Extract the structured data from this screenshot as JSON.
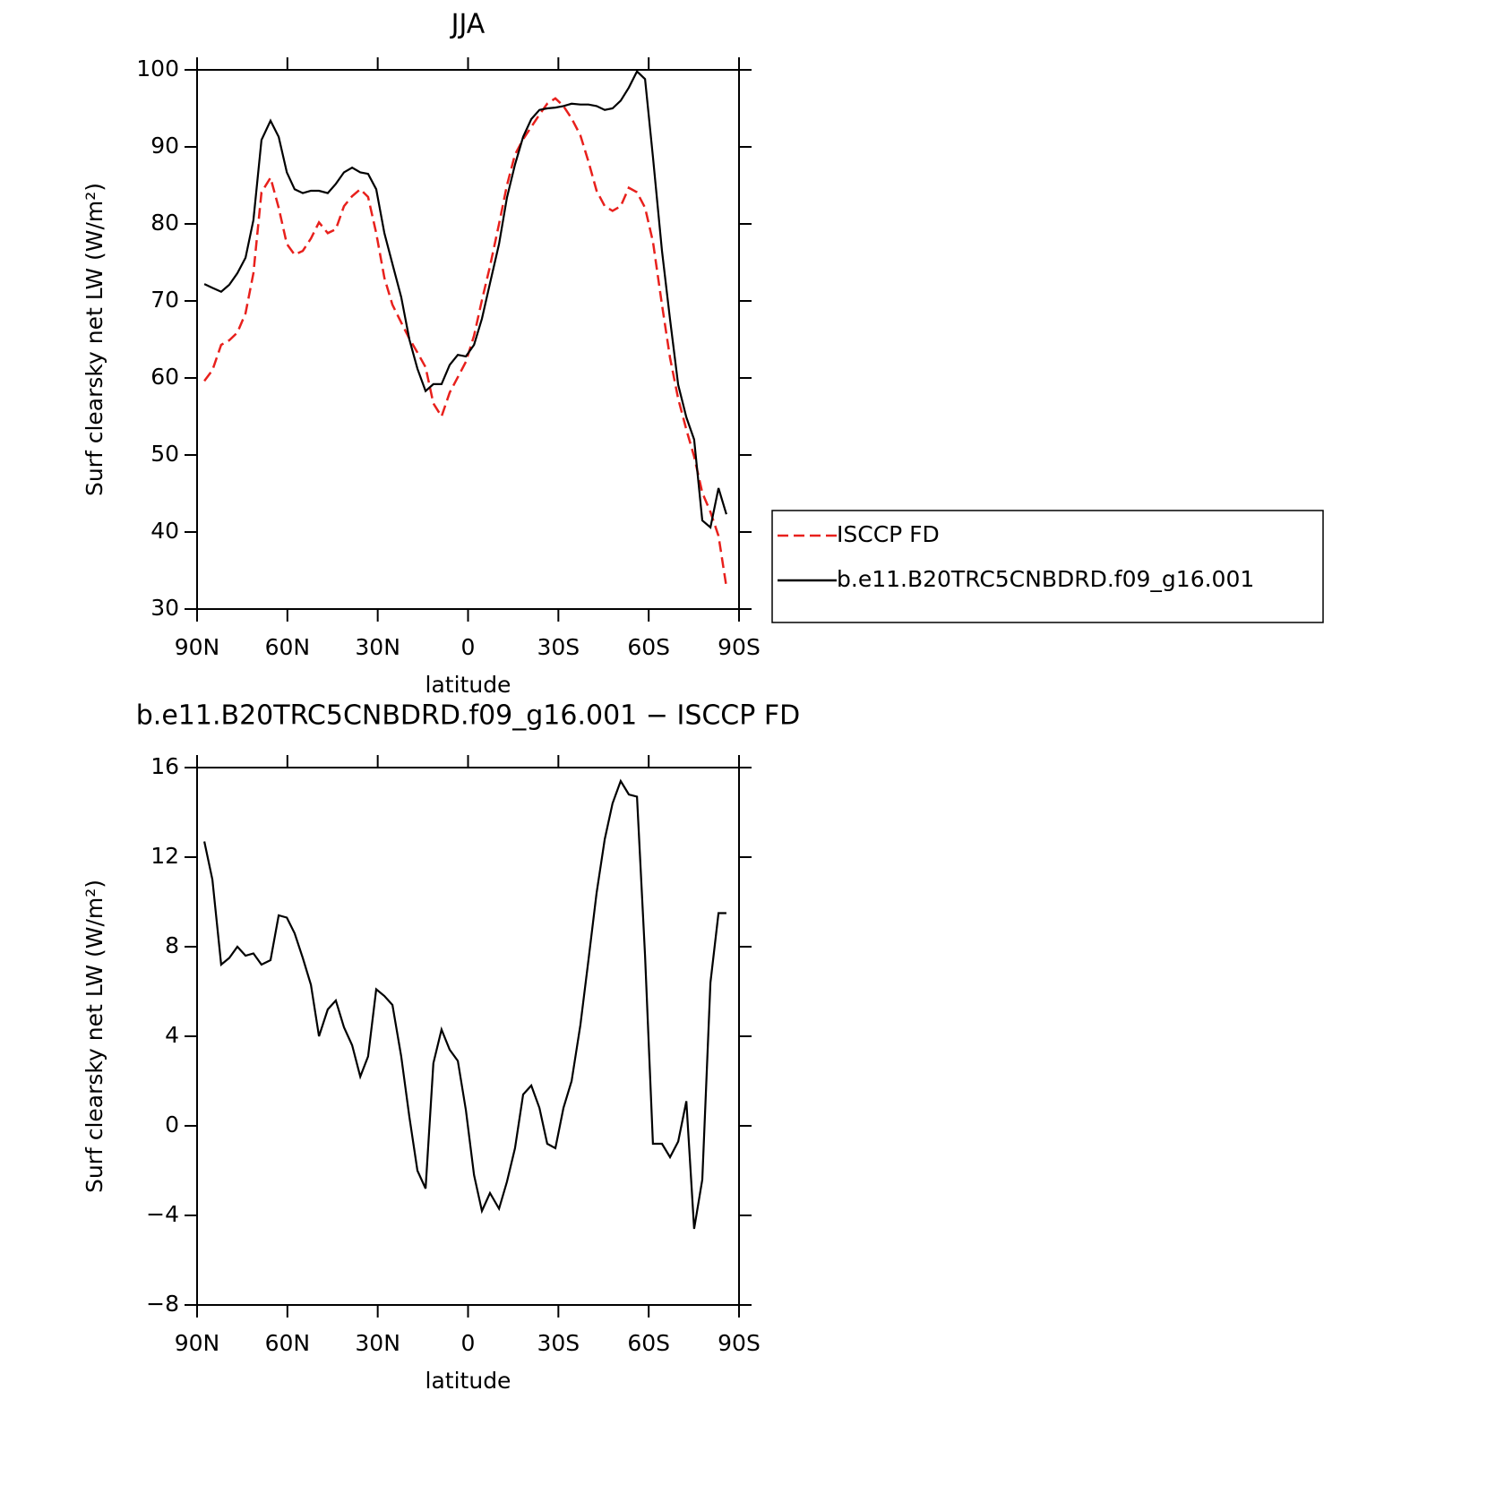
{
  "chart_data": [
    {
      "type": "line",
      "title": "JJA",
      "x_label": "latitude",
      "y_label": "Surf clearsky net LW (W/m²)",
      "x": [
        87.6,
        84.9,
        82.0,
        79.3,
        76.6,
        73.9,
        71.3,
        68.6,
        65.6,
        62.9,
        60.2,
        57.6,
        54.9,
        52.2,
        49.5,
        46.6,
        43.9,
        41.2,
        38.5,
        35.8,
        33.2,
        30.5,
        27.8,
        25.1,
        22.2,
        19.5,
        16.8,
        14.1,
        11.5,
        8.8,
        6.1,
        3.4,
        0.7,
        -2.0,
        -4.6,
        -7.3,
        -10.3,
        -12.9,
        -15.6,
        -18.3,
        -21.0,
        -23.7,
        -26.3,
        -29.0,
        -31.7,
        -34.4,
        -37.3,
        -40.0,
        -42.7,
        -45.4,
        -48.0,
        -50.7,
        -53.4,
        -56.1,
        -58.8,
        -61.4,
        -64.4,
        -67.1,
        -69.8,
        -72.5,
        -75.1,
        -77.8,
        -80.5,
        -83.2,
        -85.8
      ],
      "series": [
        {
          "name": "ISCCP FD",
          "color": "#e8201c",
          "line_style": "dashed",
          "values": [
            59.6,
            61,
            64.3,
            64.9,
            65.9,
            68.4,
            73.6,
            84.1,
            86,
            82.1,
            77.4,
            76,
            76.5,
            78.1,
            80.2,
            78.8,
            79.3,
            82.3,
            83.6,
            84.5,
            83.5,
            78.8,
            73,
            69.5,
            67.2,
            65.1,
            63.3,
            61.4,
            56.7,
            55,
            58.1,
            60.1,
            62.1,
            65.5,
            70.1,
            74.5,
            80,
            85,
            89,
            91,
            92.6,
            94.2,
            95.6,
            96.3,
            95.3,
            93.7,
            91.5,
            88.1,
            84.3,
            82.3,
            81.7,
            82.3,
            84.7,
            84.1,
            82.1,
            77.7,
            69.5,
            62.6,
            57.3,
            53.3,
            49.8,
            45.1,
            42.6,
            39.5,
            32.9
          ]
        },
        {
          "name": "b.e11.B20TRC5CNBDRD.f09_g16.001",
          "color": "#000000",
          "line_style": "solid",
          "values": [
            72.2,
            71.7,
            71.2,
            72.1,
            73.6,
            75.6,
            80.5,
            90.9,
            93.4,
            91.3,
            86.7,
            84.5,
            84,
            84.3,
            84.3,
            84,
            85.2,
            86.7,
            87.3,
            86.7,
            86.5,
            84.5,
            78.8,
            74.8,
            70.5,
            65,
            61.2,
            58.3,
            59.2,
            59.2,
            61.7,
            63,
            62.8,
            64.3,
            67.7,
            72.3,
            77.4,
            83.4,
            87.7,
            91.3,
            93.6,
            94.8,
            95,
            95.1,
            95.3,
            95.6,
            95.5,
            95.5,
            95.3,
            94.8,
            95,
            96,
            97.7,
            99.8,
            98.8,
            88.7,
            76.5,
            67.6,
            59.1,
            54.9,
            52,
            41.5,
            40.6,
            45.7,
            42.3
          ]
        }
      ],
      "xlim": [
        90,
        -90
      ],
      "xticks": [
        {
          "value": 90,
          "label": "90N"
        },
        {
          "value": 60,
          "label": "60N"
        },
        {
          "value": 30,
          "label": "30N"
        },
        0,
        {
          "value": -30,
          "label": "30S"
        },
        {
          "value": -60,
          "label": "60S"
        },
        {
          "value": -90,
          "label": "90S"
        }
      ],
      "ylim": [
        30,
        100
      ],
      "yticks": [
        30,
        40,
        50,
        60,
        70,
        80,
        90,
        100
      ],
      "legend": "right"
    },
    {
      "type": "line",
      "title": "b.e11.B20TRC5CNBDRD.f09_g16.001 − ISCCP FD",
      "x_label": "latitude",
      "y_label": "Surf clearsky net LW (W/m²)",
      "x": [
        87.6,
        84.9,
        82.0,
        79.3,
        76.6,
        73.9,
        71.3,
        68.6,
        65.6,
        62.9,
        60.2,
        57.6,
        54.9,
        52.2,
        49.5,
        46.6,
        43.9,
        41.2,
        38.5,
        35.8,
        33.2,
        30.5,
        27.8,
        25.1,
        22.2,
        19.5,
        16.8,
        14.1,
        11.5,
        8.8,
        6.1,
        3.4,
        0.7,
        -2.0,
        -4.6,
        -7.3,
        -10.3,
        -12.9,
        -15.6,
        -18.3,
        -21.0,
        -23.7,
        -26.3,
        -29.0,
        -31.7,
        -34.4,
        -37.3,
        -40.0,
        -42.7,
        -45.4,
        -48.0,
        -50.7,
        -53.4,
        -56.1,
        -58.8,
        -61.4,
        -64.4,
        -67.1,
        -69.8,
        -72.5,
        -75.1,
        -77.8,
        -80.5,
        -83.2,
        -85.8
      ],
      "series": [
        {
          "color": "#000000",
          "line_style": "solid",
          "values": [
            12.7,
            11,
            7.2,
            7.5,
            8,
            7.6,
            7.7,
            7.2,
            7.4,
            9.4,
            9.3,
            8.6,
            7.5,
            6.3,
            4,
            5.2,
            5.6,
            4.4,
            3.6,
            2.2,
            3.1,
            6.1,
            5.8,
            5.4,
            3.1,
            0.4,
            -2,
            -2.8,
            2.8,
            4.3,
            3.4,
            2.9,
            0.7,
            -2.2,
            -3.8,
            -3,
            -3.7,
            -2.5,
            -1,
            1.4,
            1.8,
            0.8,
            -0.8,
            -1,
            0.8,
            2,
            4.5,
            7.4,
            10.4,
            12.8,
            14.4,
            15.4,
            14.8,
            14.7,
            7.6,
            -0.8,
            -0.8,
            -1.4,
            -0.7,
            1.1,
            -4.6,
            -2.4,
            6.4,
            9.5,
            9.5
          ]
        }
      ],
      "xlim": [
        90,
        -90
      ],
      "xticks": [
        {
          "value": 90,
          "label": "90N"
        },
        {
          "value": 60,
          "label": "60N"
        },
        {
          "value": 30,
          "label": "30N"
        },
        0,
        {
          "value": -30,
          "label": "30S"
        },
        {
          "value": -60,
          "label": "60S"
        },
        {
          "value": -90,
          "label": "90S"
        }
      ],
      "ylim": [
        -8,
        16
      ],
      "yticks": [
        {
          "value": -8,
          "label": "−8"
        },
        {
          "value": -4,
          "label": "−4"
        },
        0,
        4,
        8,
        12,
        16
      ]
    }
  ]
}
